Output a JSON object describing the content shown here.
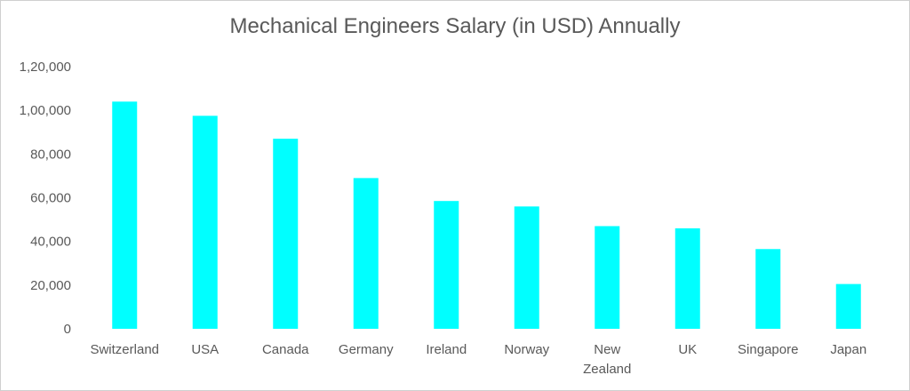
{
  "chart_data": {
    "type": "bar",
    "title": "Mechanical Engineers Salary (in USD) Annually",
    "xlabel": "",
    "ylabel": "",
    "categories": [
      [
        "Switzerland"
      ],
      [
        "USA"
      ],
      [
        "Canada"
      ],
      [
        "Germany"
      ],
      [
        "Ireland"
      ],
      [
        "Norway"
      ],
      [
        "New",
        "Zealand"
      ],
      [
        "UK"
      ],
      [
        "Singapore"
      ],
      [
        "Japan"
      ]
    ],
    "values": [
      104000,
      97500,
      87000,
      69000,
      58500,
      56000,
      47000,
      46000,
      36500,
      20500
    ],
    "ylim": [
      0,
      120000
    ],
    "yticks": [
      "0",
      "20,000",
      "40,000",
      "60,000",
      "80,000",
      "1,00,000",
      "1,20,000"
    ],
    "ytick_values": [
      0,
      20000,
      40000,
      60000,
      80000,
      100000,
      120000
    ],
    "grid": false,
    "legend": "none",
    "bar_color": "#00FFFF",
    "text_color": "#595959"
  }
}
